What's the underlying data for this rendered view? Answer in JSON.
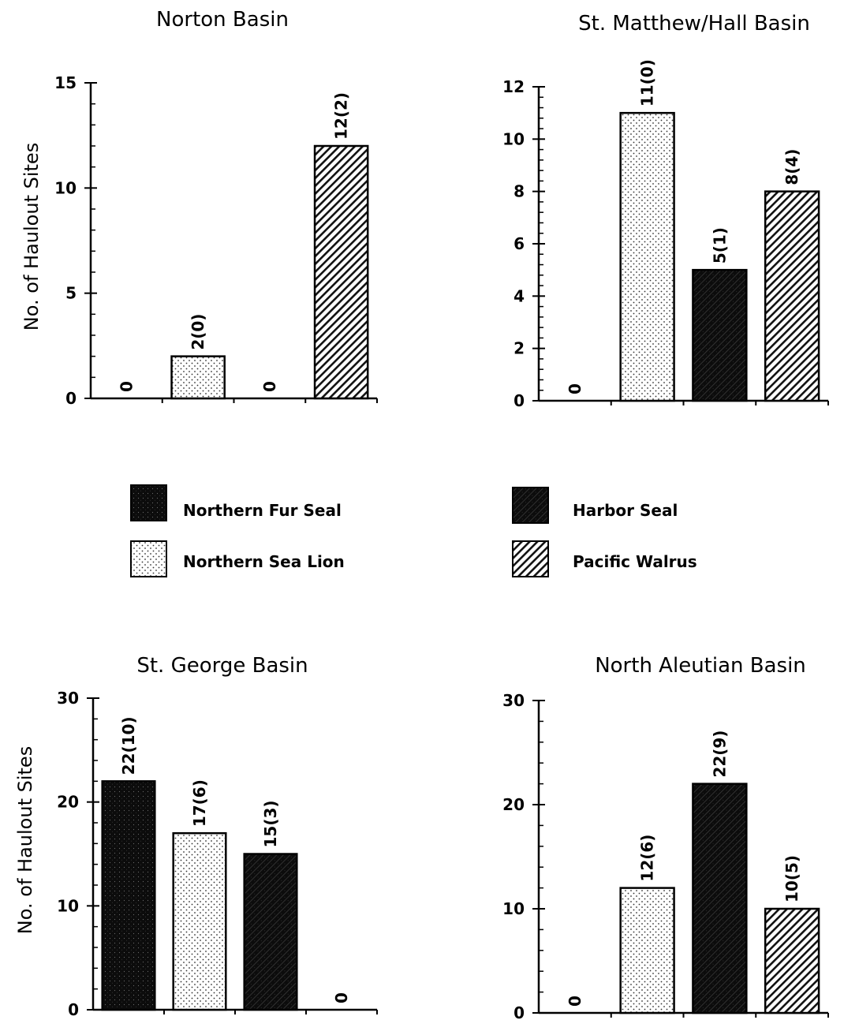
{
  "legend": {
    "entries": [
      {
        "key": "fur",
        "label": "Northern Fur Seal"
      },
      {
        "key": "harbor",
        "label": "Harbor Seal"
      },
      {
        "key": "sealion",
        "label": "Northern Sea Lion"
      },
      {
        "key": "walrus",
        "label": "Pacific Walrus"
      }
    ]
  },
  "chart_data": [
    {
      "type": "bar",
      "title": "Norton Basin",
      "ylabel": "No. of Haulout Sites",
      "ylim": [
        0,
        15
      ],
      "yticks": [
        0,
        5,
        10,
        15
      ],
      "categories": [
        "Northern Fur Seal",
        "Northern Sea Lion",
        "Harbor Seal",
        "Pacific Walrus"
      ],
      "values": [
        0,
        2,
        0,
        12
      ],
      "data_labels": [
        "0",
        "2(0)",
        "0",
        "12(2)"
      ]
    },
    {
      "type": "bar",
      "title": "St. Matthew/Hall Basin",
      "ylabel": "",
      "ylim": [
        0,
        12
      ],
      "yticks": [
        0,
        2,
        4,
        6,
        8,
        10,
        12
      ],
      "categories": [
        "Northern Fur Seal",
        "Northern Sea Lion",
        "Harbor Seal",
        "Pacific Walrus"
      ],
      "values": [
        0,
        11,
        5,
        8
      ],
      "data_labels": [
        "0",
        "11(0)",
        "5(1)",
        "8(4)"
      ]
    },
    {
      "type": "bar",
      "title": "St. George Basin",
      "ylabel": "No. of Haulout Sites",
      "ylim": [
        0,
        30
      ],
      "yticks": [
        0,
        10,
        20,
        30
      ],
      "categories": [
        "Northern Fur Seal",
        "Northern Sea Lion",
        "Harbor Seal",
        "Pacific Walrus"
      ],
      "values": [
        22,
        17,
        15,
        0
      ],
      "data_labels": [
        "22(10)",
        "17(6)",
        "15(3)",
        "0"
      ]
    },
    {
      "type": "bar",
      "title": "North Aleutian Basin",
      "ylabel": "",
      "ylim": [
        0,
        30
      ],
      "yticks": [
        0,
        10,
        20,
        30
      ],
      "categories": [
        "Northern Fur Seal",
        "Northern Sea Lion",
        "Harbor Seal",
        "Pacific Walrus"
      ],
      "values": [
        0,
        12,
        22,
        10
      ],
      "data_labels": [
        "0",
        "12(6)",
        "22(9)",
        "10(5)"
      ]
    }
  ]
}
